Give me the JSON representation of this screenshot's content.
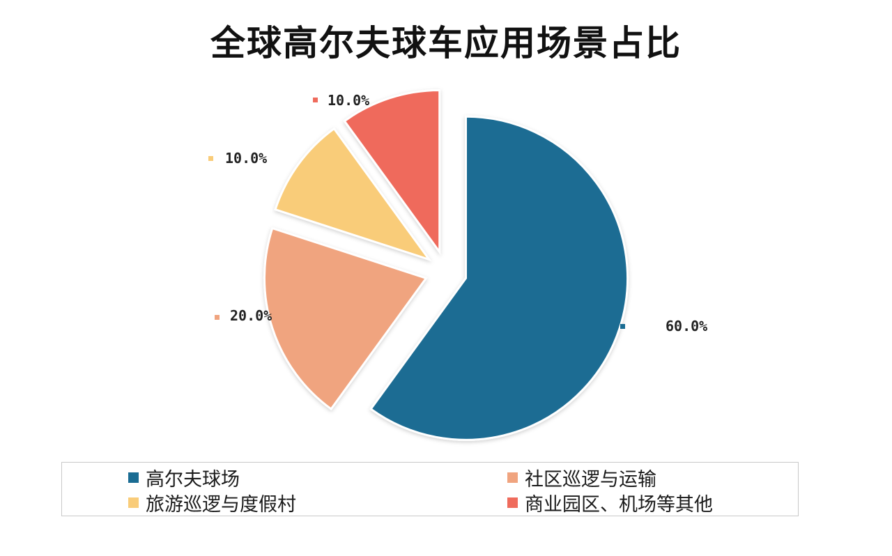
{
  "chart_data": {
    "type": "pie",
    "title": "全球高尔夫球车应用场景占比",
    "categories": [
      "高尔夫球场",
      "社区巡逻与运输",
      "旅游巡逻与度假村",
      "商业园区、机场等其他"
    ],
    "values": [
      60.0,
      20.0,
      10.0,
      10.0
    ],
    "data_labels": [
      "60.0%",
      "20.0%",
      "10.0%",
      "10.0%"
    ],
    "colors": [
      "#1a6c93",
      "#f0a47f",
      "#f9cc79",
      "#ef6b5c"
    ],
    "exploded": true,
    "legend_position": "bottom"
  }
}
